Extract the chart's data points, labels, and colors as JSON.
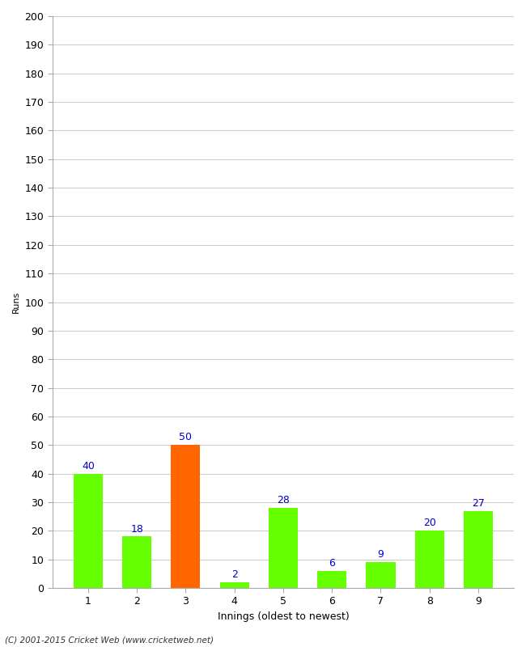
{
  "categories": [
    "1",
    "2",
    "3",
    "4",
    "5",
    "6",
    "7",
    "8",
    "9"
  ],
  "values": [
    40,
    18,
    50,
    2,
    28,
    6,
    9,
    20,
    27
  ],
  "bar_colors": [
    "#66ff00",
    "#66ff00",
    "#ff6600",
    "#66ff00",
    "#66ff00",
    "#66ff00",
    "#66ff00",
    "#66ff00",
    "#66ff00"
  ],
  "xlabel": "Innings (oldest to newest)",
  "ylabel": "Runs",
  "ylim": [
    0,
    200
  ],
  "yticks": [
    0,
    10,
    20,
    30,
    40,
    50,
    60,
    70,
    80,
    90,
    100,
    110,
    120,
    130,
    140,
    150,
    160,
    170,
    180,
    190,
    200
  ],
  "label_color": "#0000cc",
  "footer": "(C) 2001-2015 Cricket Web (www.cricketweb.net)",
  "background_color": "#ffffff",
  "grid_color": "#cccccc",
  "label_fontsize": 9,
  "axis_fontsize": 9,
  "ylabel_fontsize": 8
}
